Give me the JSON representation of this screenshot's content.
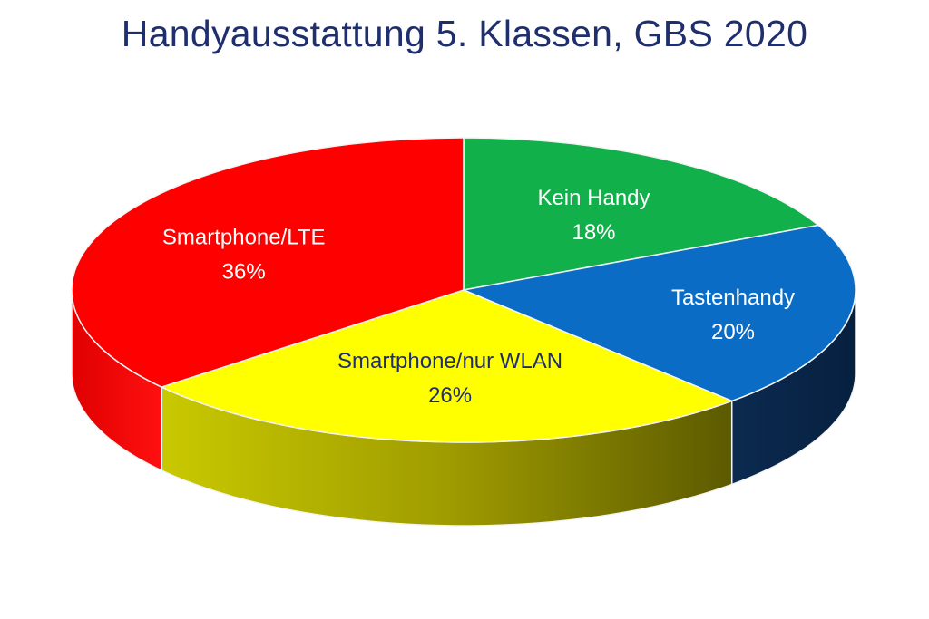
{
  "chart_data": {
    "type": "pie",
    "title": "Handyausstattung 5. Klassen, GBS 2020",
    "style": "3d",
    "slices": [
      {
        "label": "Kein Handy",
        "value": 18,
        "value_label": "18%",
        "color": "#11b04a",
        "side_color": "#0a6a2c",
        "text_color": "#ffffff"
      },
      {
        "label": "Tastenhandy",
        "value": 20,
        "value_label": "20%",
        "color": "#0a6cc4",
        "side_color": "#0c2a50",
        "text_color": "#ffffff"
      },
      {
        "label": "Smartphone/nur WLAN",
        "value": 26,
        "value_label": "26%",
        "color": "#ffff00",
        "side_color": "#a8a800",
        "text_color": "#1f2f6e"
      },
      {
        "label": "Smartphone/LTE",
        "value": 36,
        "value_label": "36%",
        "color": "#ff0000",
        "side_color": "#c00000",
        "text_color": "#ffffff"
      }
    ]
  }
}
